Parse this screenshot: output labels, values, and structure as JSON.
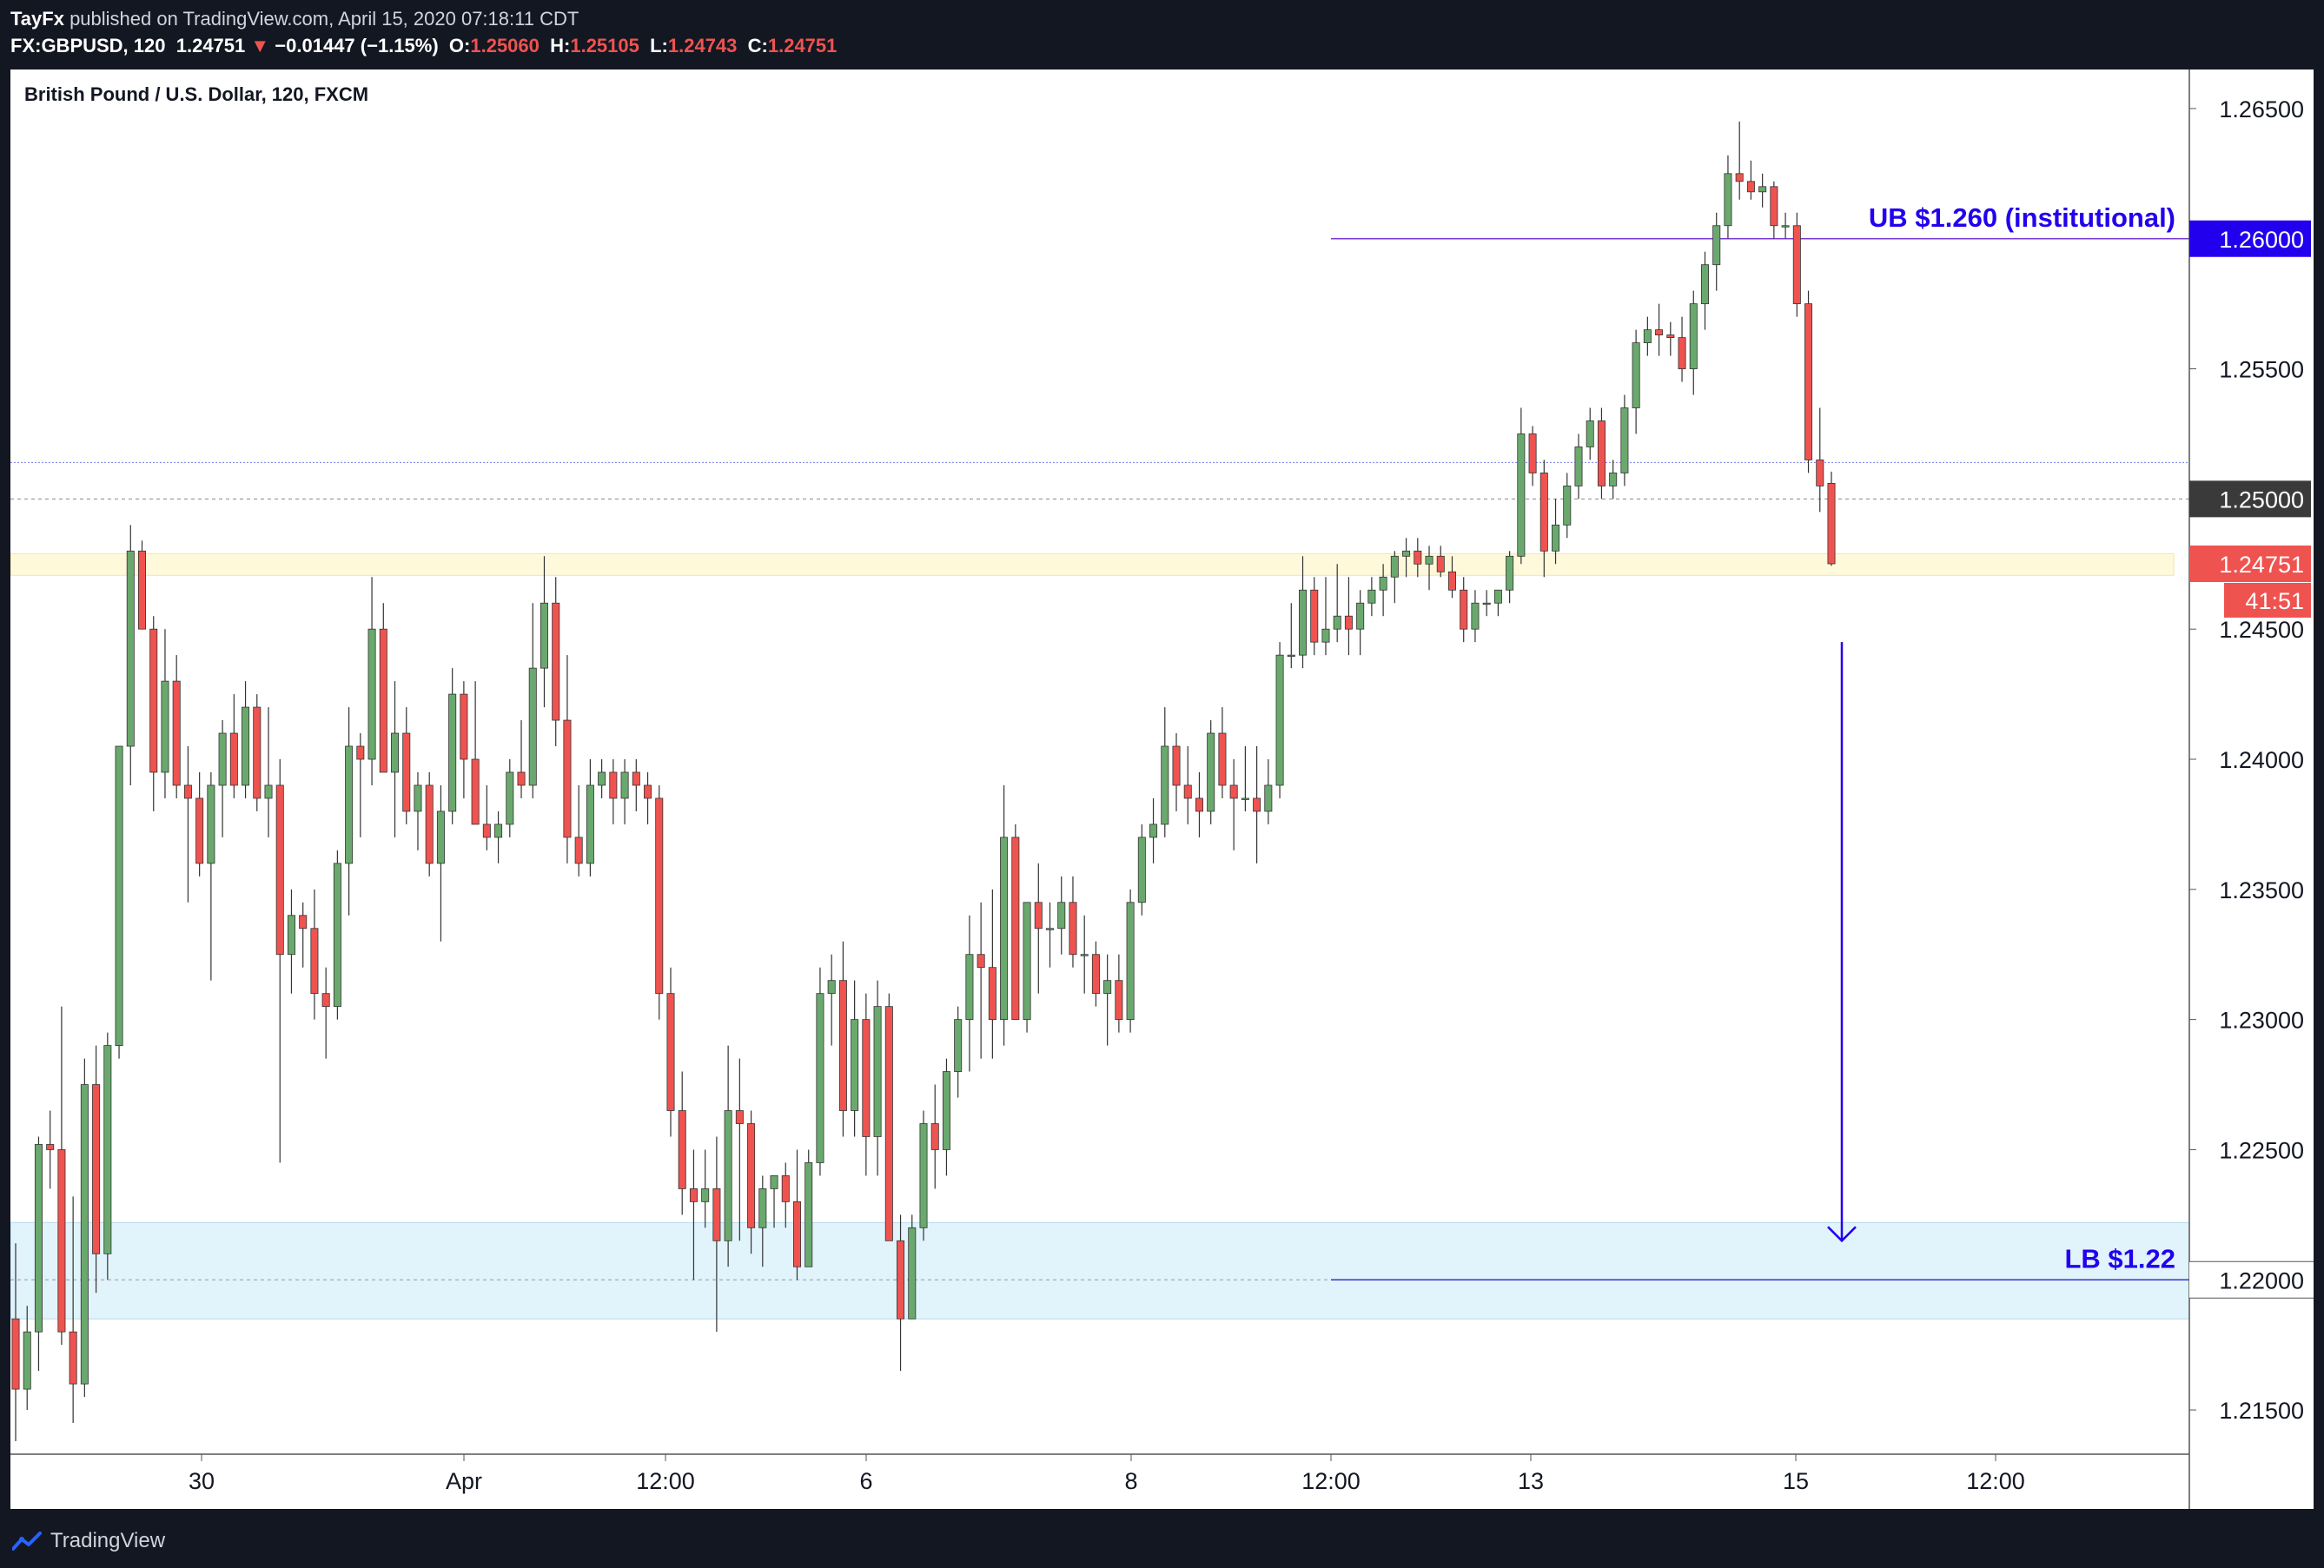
{
  "header": {
    "publisher": "TayFx",
    "published_text": " published on TradingView.com, April 15, 2020 07:18:11 CDT",
    "symbol": "FX:GBPUSD, 120",
    "last": "1.24751",
    "arrow": "▼",
    "change": "−0.01447 (−1.15%)",
    "o_label": "O:",
    "o_value": "1.25060",
    "h_label": "H:",
    "h_value": "1.25105",
    "l_label": "L:",
    "l_value": "1.24743",
    "c_label": "C:",
    "c_value": "1.24751"
  },
  "footer": {
    "brand": "TradingView",
    "logo_icon": "tradingview-logo-icon"
  },
  "colors": {
    "up": "#6aa96d",
    "down": "#ef5350",
    "background": "#131722",
    "accent": "#2200ee",
    "lb_zone": "#e1f3fb",
    "horizontal_zone": "#fff9dc"
  },
  "chart_data": {
    "type": "candlestick",
    "title": "British Pound / U.S. Dollar, 120, FXCM",
    "x_tick_labels": [
      "30",
      "Apr",
      "12:00",
      "6",
      "8",
      "12:00",
      "13",
      "15",
      "12:00"
    ],
    "y_tick_labels": [
      "1.26500",
      "1.26000",
      "1.25500",
      "1.25000",
      "1.24500",
      "1.24000",
      "1.23500",
      "1.23000",
      "1.22500",
      "1.22000",
      "1.21500"
    ],
    "y_tick_values": [
      1.265,
      1.26,
      1.255,
      1.25,
      1.245,
      1.24,
      1.235,
      1.23,
      1.225,
      1.22,
      1.215
    ],
    "ylim": [
      1.2133,
      1.2665
    ],
    "last_price": {
      "value": 1.24751,
      "label": "1.24751",
      "countdown": "41:51"
    },
    "annotations": {
      "upper_bound": {
        "label": "UB $1.260 (institutional)",
        "value": 1.26,
        "axis_label": "1.26000"
      },
      "lower_bound": {
        "label": "LB $1.22",
        "value": 1.22,
        "axis_label": "1.22000",
        "zone": [
          1.2185,
          1.2222
        ]
      },
      "round_level": {
        "value": 1.25,
        "axis_label": "1.25000"
      },
      "horizontal_zone": [
        1.2473,
        1.2478
      ],
      "target_arrow": {
        "from": 1.2445,
        "to": 1.2215
      }
    },
    "candles": [
      [
        1.2185,
        1.2214,
        1.2138,
        1.2158
      ],
      [
        1.2158,
        1.219,
        1.215,
        1.218
      ],
      [
        1.218,
        1.2255,
        1.2165,
        1.2252
      ],
      [
        1.2252,
        1.2265,
        1.2235,
        1.225
      ],
      [
        1.225,
        1.2305,
        1.2175,
        1.218
      ],
      [
        1.218,
        1.2232,
        1.2145,
        1.216
      ],
      [
        1.216,
        1.2285,
        1.2155,
        1.2275
      ],
      [
        1.2275,
        1.229,
        1.2195,
        1.221
      ],
      [
        1.221,
        1.2295,
        1.22,
        1.229
      ],
      [
        1.229,
        1.24,
        1.2285,
        1.2405
      ],
      [
        1.2405,
        1.249,
        1.239,
        1.248
      ],
      [
        1.248,
        1.2484,
        1.245,
        1.245
      ],
      [
        1.245,
        1.2455,
        1.238,
        1.2395
      ],
      [
        1.2395,
        1.245,
        1.2385,
        1.243
      ],
      [
        1.243,
        1.244,
        1.2385,
        1.239
      ],
      [
        1.239,
        1.2405,
        1.2345,
        1.2385
      ],
      [
        1.2385,
        1.2395,
        1.2355,
        1.236
      ],
      [
        1.236,
        1.2395,
        1.2315,
        1.239
      ],
      [
        1.239,
        1.2415,
        1.237,
        1.241
      ],
      [
        1.241,
        1.2425,
        1.2385,
        1.239
      ],
      [
        1.239,
        1.243,
        1.2385,
        1.242
      ],
      [
        1.242,
        1.2425,
        1.238,
        1.2385
      ],
      [
        1.2385,
        1.242,
        1.237,
        1.239
      ],
      [
        1.239,
        1.24,
        1.2245,
        1.2325
      ],
      [
        1.2325,
        1.235,
        1.231,
        1.234
      ],
      [
        1.234,
        1.2345,
        1.232,
        1.2335
      ],
      [
        1.2335,
        1.235,
        1.23,
        1.231
      ],
      [
        1.231,
        1.232,
        1.2285,
        1.2305
      ],
      [
        1.2305,
        1.2365,
        1.23,
        1.236
      ],
      [
        1.236,
        1.242,
        1.234,
        1.2405
      ],
      [
        1.2405,
        1.241,
        1.237,
        1.24
      ],
      [
        1.24,
        1.247,
        1.239,
        1.245
      ],
      [
        1.245,
        1.246,
        1.2395,
        1.2395
      ],
      [
        1.2395,
        1.243,
        1.237,
        1.241
      ],
      [
        1.241,
        1.242,
        1.2375,
        1.238
      ],
      [
        1.238,
        1.2395,
        1.2365,
        1.239
      ],
      [
        1.239,
        1.2395,
        1.2355,
        1.236
      ],
      [
        1.236,
        1.239,
        1.233,
        1.238
      ],
      [
        1.238,
        1.2435,
        1.2375,
        1.2425
      ],
      [
        1.2425,
        1.243,
        1.2385,
        1.24
      ],
      [
        1.24,
        1.243,
        1.2375,
        1.2375
      ],
      [
        1.2375,
        1.239,
        1.2365,
        1.237
      ],
      [
        1.237,
        1.238,
        1.236,
        1.2375
      ],
      [
        1.2375,
        1.24,
        1.237,
        1.2395
      ],
      [
        1.2395,
        1.2415,
        1.2385,
        1.239
      ],
      [
        1.239,
        1.246,
        1.2385,
        1.2435
      ],
      [
        1.2435,
        1.2478,
        1.242,
        1.246
      ],
      [
        1.246,
        1.247,
        1.2405,
        1.2415
      ],
      [
        1.2415,
        1.244,
        1.236,
        1.237
      ],
      [
        1.237,
        1.239,
        1.2355,
        1.236
      ],
      [
        1.236,
        1.24,
        1.2355,
        1.239
      ],
      [
        1.239,
        1.24,
        1.2385,
        1.2395
      ],
      [
        1.2395,
        1.24,
        1.2375,
        1.2385
      ],
      [
        1.2385,
        1.24,
        1.2375,
        1.2395
      ],
      [
        1.2395,
        1.24,
        1.238,
        1.239
      ],
      [
        1.239,
        1.2395,
        1.2375,
        1.2385
      ],
      [
        1.2385,
        1.239,
        1.23,
        1.231
      ],
      [
        1.231,
        1.232,
        1.2255,
        1.2265
      ],
      [
        1.2265,
        1.228,
        1.2225,
        1.2235
      ],
      [
        1.2235,
        1.225,
        1.22,
        1.223
      ],
      [
        1.223,
        1.225,
        1.222,
        1.2235
      ],
      [
        1.2235,
        1.2255,
        1.218,
        1.2215
      ],
      [
        1.2215,
        1.229,
        1.2205,
        1.2265
      ],
      [
        1.2265,
        1.2285,
        1.2215,
        1.226
      ],
      [
        1.226,
        1.2265,
        1.221,
        1.222
      ],
      [
        1.222,
        1.224,
        1.2205,
        1.2235
      ],
      [
        1.2235,
        1.224,
        1.222,
        1.224
      ],
      [
        1.224,
        1.2245,
        1.222,
        1.223
      ],
      [
        1.223,
        1.225,
        1.22,
        1.2205
      ],
      [
        1.2205,
        1.225,
        1.2205,
        1.2245
      ],
      [
        1.2245,
        1.232,
        1.224,
        1.231
      ],
      [
        1.231,
        1.2325,
        1.229,
        1.2315
      ],
      [
        1.2315,
        1.233,
        1.2255,
        1.2265
      ],
      [
        1.2265,
        1.2315,
        1.2255,
        1.23
      ],
      [
        1.23,
        1.231,
        1.224,
        1.2255
      ],
      [
        1.2255,
        1.2315,
        1.224,
        1.2305
      ],
      [
        1.2305,
        1.231,
        1.2215,
        1.2215
      ],
      [
        1.2215,
        1.2225,
        1.2165,
        1.2185
      ],
      [
        1.2185,
        1.2225,
        1.2185,
        1.222
      ],
      [
        1.222,
        1.2265,
        1.2215,
        1.226
      ],
      [
        1.226,
        1.2275,
        1.2235,
        1.225
      ],
      [
        1.225,
        1.2285,
        1.224,
        1.228
      ],
      [
        1.228,
        1.2305,
        1.227,
        1.23
      ],
      [
        1.23,
        1.234,
        1.228,
        1.2325
      ],
      [
        1.2325,
        1.2345,
        1.2285,
        1.232
      ],
      [
        1.232,
        1.235,
        1.2285,
        1.23
      ],
      [
        1.23,
        1.239,
        1.229,
        1.237
      ],
      [
        1.237,
        1.2375,
        1.23,
        1.23
      ],
      [
        1.23,
        1.2345,
        1.2295,
        1.2345
      ],
      [
        1.2345,
        1.236,
        1.231,
        1.2335
      ],
      [
        1.2335,
        1.2345,
        1.232,
        1.2335
      ],
      [
        1.2335,
        1.2355,
        1.2325,
        1.2345
      ],
      [
        1.2345,
        1.2355,
        1.232,
        1.2325
      ],
      [
        1.2325,
        1.234,
        1.231,
        1.2325
      ],
      [
        1.2325,
        1.233,
        1.2305,
        1.231
      ],
      [
        1.231,
        1.2325,
        1.229,
        1.2315
      ],
      [
        1.2315,
        1.2325,
        1.2295,
        1.23
      ],
      [
        1.23,
        1.235,
        1.2295,
        1.2345
      ],
      [
        1.2345,
        1.2375,
        1.234,
        1.237
      ],
      [
        1.237,
        1.2385,
        1.236,
        1.2375
      ],
      [
        1.2375,
        1.242,
        1.237,
        1.2405
      ],
      [
        1.2405,
        1.241,
        1.238,
        1.239
      ],
      [
        1.239,
        1.2405,
        1.2375,
        1.2385
      ],
      [
        1.2385,
        1.2395,
        1.237,
        1.238
      ],
      [
        1.238,
        1.2415,
        1.2375,
        1.241
      ],
      [
        1.241,
        1.242,
        1.2385,
        1.239
      ],
      [
        1.239,
        1.24,
        1.2365,
        1.2385
      ],
      [
        1.2385,
        1.2405,
        1.238,
        1.2385
      ],
      [
        1.2385,
        1.2405,
        1.236,
        1.238
      ],
      [
        1.238,
        1.24,
        1.2375,
        1.239
      ],
      [
        1.239,
        1.2445,
        1.2385,
        1.244
      ],
      [
        1.244,
        1.246,
        1.2435,
        1.244
      ],
      [
        1.244,
        1.2478,
        1.2435,
        1.2465
      ],
      [
        1.2465,
        1.247,
        1.244,
        1.2445
      ],
      [
        1.2445,
        1.247,
        1.244,
        1.245
      ],
      [
        1.245,
        1.2475,
        1.2445,
        1.2455
      ],
      [
        1.2455,
        1.247,
        1.244,
        1.245
      ],
      [
        1.245,
        1.2465,
        1.244,
        1.246
      ],
      [
        1.246,
        1.247,
        1.2455,
        1.2465
      ],
      [
        1.2465,
        1.2475,
        1.2455,
        1.247
      ],
      [
        1.247,
        1.248,
        1.246,
        1.2478
      ],
      [
        1.2478,
        1.2485,
        1.247,
        1.248
      ],
      [
        1.248,
        1.2485,
        1.247,
        1.2475
      ],
      [
        1.2475,
        1.2482,
        1.2465,
        1.2478
      ],
      [
        1.2478,
        1.2482,
        1.247,
        1.2472
      ],
      [
        1.2472,
        1.2478,
        1.2462,
        1.2465
      ],
      [
        1.2465,
        1.247,
        1.2445,
        1.245
      ],
      [
        1.245,
        1.2465,
        1.2445,
        1.246
      ],
      [
        1.246,
        1.2465,
        1.2455,
        1.246
      ],
      [
        1.246,
        1.2465,
        1.2455,
        1.2465
      ],
      [
        1.2465,
        1.248,
        1.246,
        1.2478
      ],
      [
        1.2478,
        1.2535,
        1.2475,
        1.2525
      ],
      [
        1.2525,
        1.2528,
        1.2505,
        1.251
      ],
      [
        1.251,
        1.2515,
        1.247,
        1.248
      ],
      [
        1.248,
        1.25,
        1.2475,
        1.249
      ],
      [
        1.249,
        1.251,
        1.2485,
        1.2505
      ],
      [
        1.2505,
        1.2525,
        1.25,
        1.252
      ],
      [
        1.252,
        1.2535,
        1.2515,
        1.253
      ],
      [
        1.253,
        1.2535,
        1.25,
        1.2505
      ],
      [
        1.2505,
        1.2515,
        1.25,
        1.251
      ],
      [
        1.251,
        1.254,
        1.2505,
        1.2535
      ],
      [
        1.2535,
        1.2565,
        1.2525,
        1.256
      ],
      [
        1.256,
        1.257,
        1.2555,
        1.2565
      ],
      [
        1.2565,
        1.2575,
        1.2555,
        1.2563
      ],
      [
        1.2563,
        1.2568,
        1.2555,
        1.2562
      ],
      [
        1.2562,
        1.257,
        1.2545,
        1.255
      ],
      [
        1.255,
        1.258,
        1.254,
        1.2575
      ],
      [
        1.2575,
        1.2595,
        1.2565,
        1.259
      ],
      [
        1.259,
        1.261,
        1.258,
        1.2605
      ],
      [
        1.2605,
        1.2632,
        1.26,
        1.2625
      ],
      [
        1.2625,
        1.2645,
        1.2615,
        1.2622
      ],
      [
        1.2622,
        1.263,
        1.2615,
        1.2618
      ],
      [
        1.2618,
        1.2625,
        1.2612,
        1.262
      ],
      [
        1.262,
        1.2622,
        1.26,
        1.2605
      ],
      [
        1.2605,
        1.261,
        1.26,
        1.2605
      ],
      [
        1.2605,
        1.261,
        1.257,
        1.2575
      ],
      [
        1.2575,
        1.258,
        1.251,
        1.2515
      ],
      [
        1.2515,
        1.2535,
        1.2495,
        1.2505
      ],
      [
        1.2506,
        1.25105,
        1.24743,
        1.24751
      ]
    ]
  }
}
